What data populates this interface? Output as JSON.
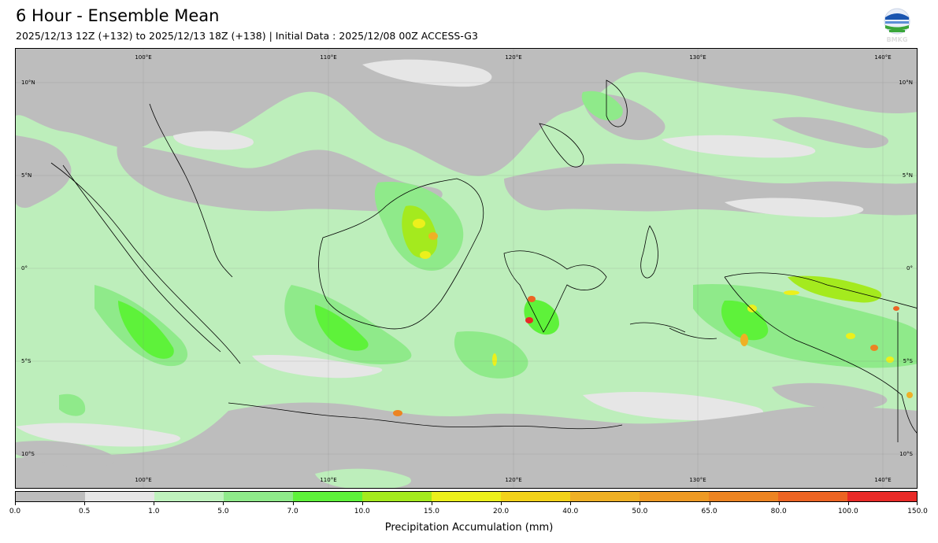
{
  "header": {
    "title": "6 Hour - Ensemble Mean",
    "subtitle": "2025/12/13 12Z (+132) to 2025/12/13 18Z (+138) | Initial Data : 2025/12/08 00Z ACCESS-G3",
    "logo_text": "BMKG"
  },
  "map": {
    "lon_labels": [
      "100°E",
      "110°E",
      "120°E",
      "130°E",
      "140°E"
    ],
    "lat_labels": [
      "10°N",
      "5°N",
      "0°",
      "5°S",
      "10°S"
    ],
    "grid": true
  },
  "colorbar": {
    "label": "Precipitation Accumulation (mm)",
    "ticks": [
      "0.0",
      "0.5",
      "1.0",
      "5.0",
      "7.0",
      "10.0",
      "15.0",
      "20.0",
      "40.0",
      "50.0",
      "65.0",
      "80.0",
      "100.0",
      "150.0"
    ],
    "colors": [
      "#bdbdbd",
      "#e6e6e6",
      "#bff2bd",
      "#8fea8a",
      "#5ef23a",
      "#a4ea1e",
      "#ecf01c",
      "#f3d21a",
      "#efb025",
      "#ee9a24",
      "#ec8422",
      "#ec6423",
      "#e82a27",
      "#e61ebf"
    ]
  }
}
